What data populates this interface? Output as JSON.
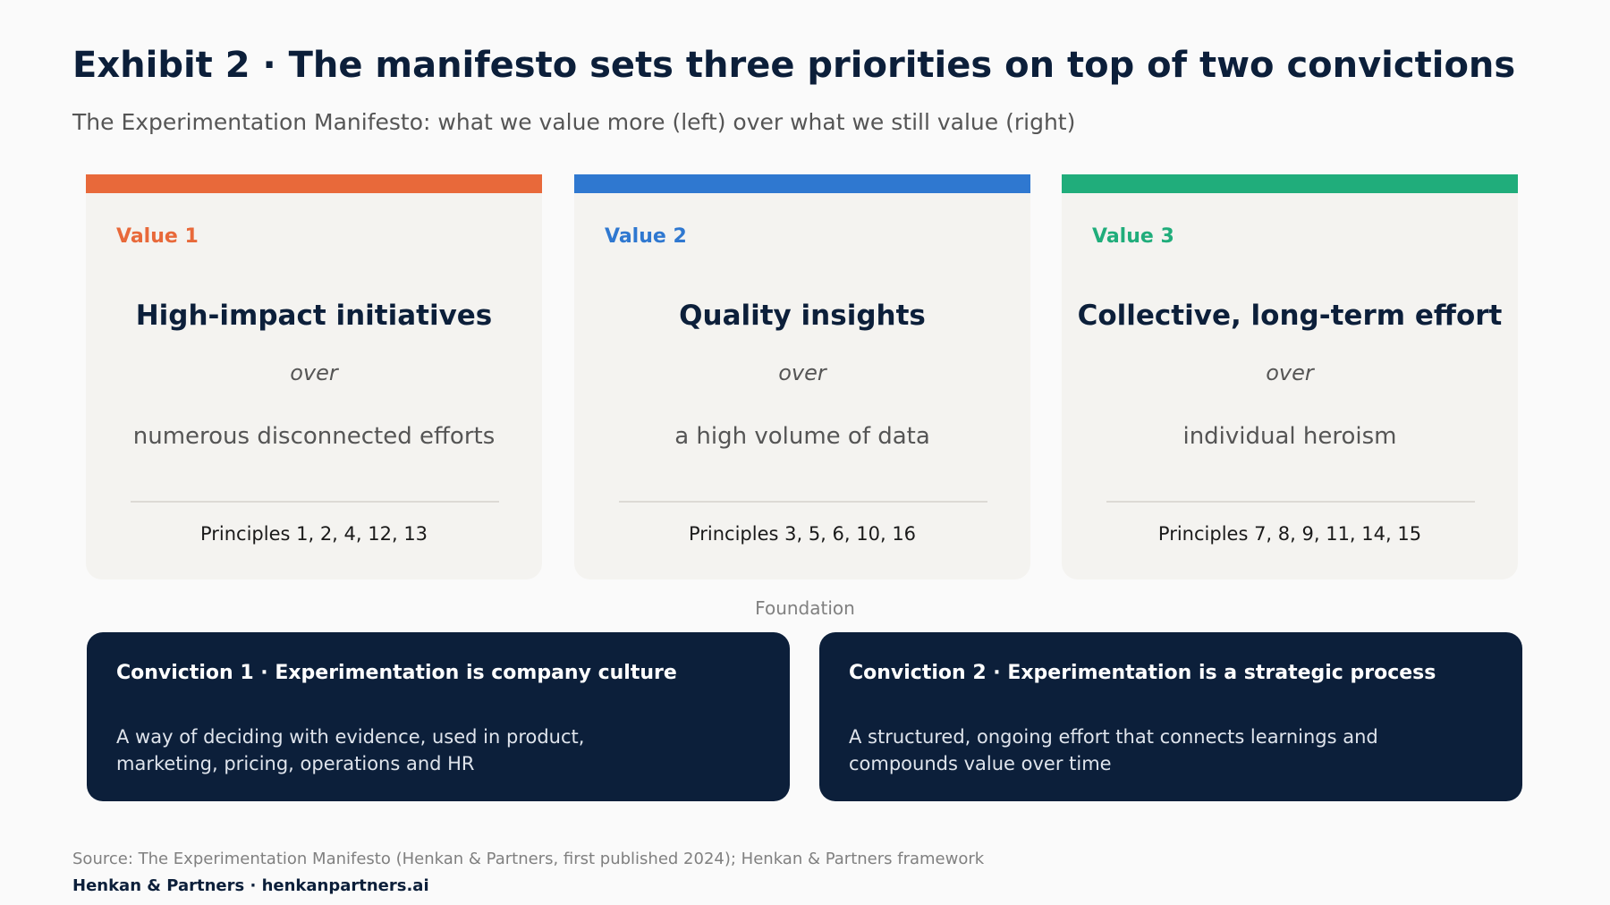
{
  "header": {
    "title": "Exhibit 2 · The manifesto sets three priorities on top of two convictions",
    "subtitle": "The Experimentation Manifesto: what we value more (left) over what we still value (right)"
  },
  "values": [
    {
      "label": "Value 1",
      "headline": "High-impact initiatives",
      "over": "over",
      "contrast": "numerous disconnected efforts",
      "principles": "Principles 1, 2, 4, 12, 13",
      "color": "#e8693a"
    },
    {
      "label": "Value 2",
      "headline": "Quality insights",
      "over": "over",
      "contrast": "a high volume of data",
      "principles": "Principles 3, 5, 6, 10, 16",
      "color": "#2f78d0"
    },
    {
      "label": "Value 3",
      "headline": "Collective, long-term effort",
      "over": "over",
      "contrast": "individual heroism",
      "principles": "Principles 7, 8, 9, 11, 14, 15",
      "color": "#20ad7b"
    }
  ],
  "foundation": {
    "label": "Foundation"
  },
  "convictions": [
    {
      "title": "Conviction 1 · Experimentation is company culture",
      "body": "A way of deciding with evidence, used in product, marketing, pricing, operations and HR"
    },
    {
      "title": "Conviction 2 · Experimentation is a strategic process",
      "body": "A structured, ongoing effort that connects learnings and compounds value over time"
    }
  ],
  "footer": {
    "source": "Source: The Experimentation Manifesto (Henkan & Partners, first published 2024); Henkan & Partners framework",
    "brand": "Henkan & Partners · henkanpartners.ai"
  }
}
